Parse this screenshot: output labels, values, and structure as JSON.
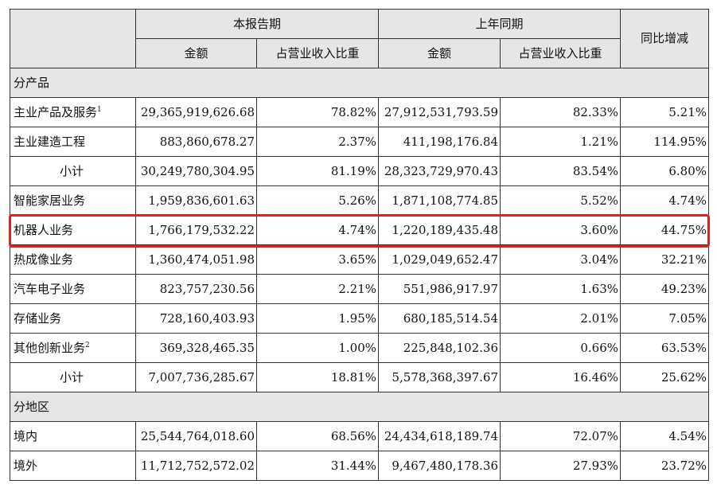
{
  "header": {
    "current_period": "本报告期",
    "prior_period": "上年同期",
    "yoy_change": "同比增减",
    "amount": "金额",
    "share_of_revenue": "占营业收入比重"
  },
  "sections": {
    "by_product": "分产品",
    "by_region": "分地区"
  },
  "rows": [
    {
      "label": "主业产品及服务",
      "sup": "1",
      "cur_amount": "29,365,919,626.68",
      "cur_pct": "78.82%",
      "prior_amount": "27,912,531,793.59",
      "prior_pct": "82.33%",
      "yoy": "5.21%"
    },
    {
      "label": "主业建造工程",
      "sup": "",
      "cur_amount": "883,860,678.27",
      "cur_pct": "2.37%",
      "prior_amount": "411,198,176.84",
      "prior_pct": "1.21%",
      "yoy": "114.95%"
    },
    {
      "label": "小计",
      "sup": "",
      "cur_amount": "30,249,780,304.95",
      "cur_pct": "81.19%",
      "prior_amount": "28,323,729,970.43",
      "prior_pct": "83.54%",
      "yoy": "6.80%"
    },
    {
      "label": "智能家居业务",
      "sup": "",
      "cur_amount": "1,959,836,601.63",
      "cur_pct": "5.26%",
      "prior_amount": "1,871,108,774.85",
      "prior_pct": "5.52%",
      "yoy": "4.74%"
    },
    {
      "label": "机器人业务",
      "sup": "",
      "cur_amount": "1,766,179,532.22",
      "cur_pct": "4.74%",
      "prior_amount": "1,220,189,435.48",
      "prior_pct": "3.60%",
      "yoy": "44.75%"
    },
    {
      "label": "热成像业务",
      "sup": "",
      "cur_amount": "1,360,474,051.98",
      "cur_pct": "3.65%",
      "prior_amount": "1,029,049,652.47",
      "prior_pct": "3.04%",
      "yoy": "32.21%"
    },
    {
      "label": "汽车电子业务",
      "sup": "",
      "cur_amount": "823,757,230.56",
      "cur_pct": "2.21%",
      "prior_amount": "551,986,917.97",
      "prior_pct": "1.63%",
      "yoy": "49.23%"
    },
    {
      "label": "存储业务",
      "sup": "",
      "cur_amount": "728,160,403.93",
      "cur_pct": "1.95%",
      "prior_amount": "680,185,514.54",
      "prior_pct": "2.01%",
      "yoy": "7.05%"
    },
    {
      "label": "其他创新业务",
      "sup": "2",
      "cur_amount": "369,328,465.35",
      "cur_pct": "1.00%",
      "prior_amount": "225,848,102.36",
      "prior_pct": "0.66%",
      "yoy": "63.53%"
    },
    {
      "label": "小计",
      "sup": "",
      "cur_amount": "7,007,736,285.67",
      "cur_pct": "18.81%",
      "prior_amount": "5,578,368,397.67",
      "prior_pct": "16.46%",
      "yoy": "25.62%"
    },
    {
      "label": "境内",
      "sup": "",
      "cur_amount": "25,544,764,018.60",
      "cur_pct": "68.56%",
      "prior_amount": "24,434,618,189.74",
      "prior_pct": "72.07%",
      "yoy": "4.54%"
    },
    {
      "label": "境外",
      "sup": "",
      "cur_amount": "11,712,752,572.02",
      "cur_pct": "31.44%",
      "prior_amount": "9,467,480,178.36",
      "prior_pct": "27.93%",
      "yoy": "23.72%"
    }
  ],
  "highlight_color": "#e02020"
}
